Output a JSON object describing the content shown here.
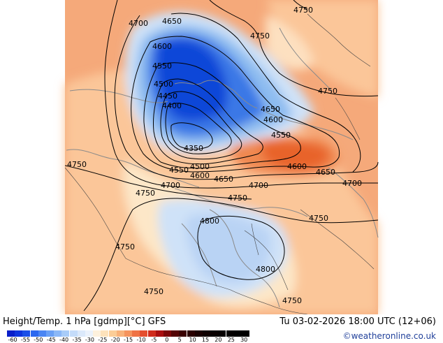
{
  "map": {
    "contour_labels": [
      "4750",
      "4700",
      "4650",
      "4600",
      "4550",
      "4500",
      "4450",
      "4400",
      "4350",
      "4800"
    ],
    "colors": {
      "background": "#ffffff",
      "warm_base": "#f5a97a",
      "warm_light": "#fbd2a4",
      "pale": "#fde7c8",
      "cold_light": "#cfe2f8",
      "cold_mid": "#8dbcf0",
      "cold_deep": "#3a78e6",
      "cold_core": "#1046d8",
      "hot_core": "#e8632c",
      "coast": "#8a8a8a",
      "border": "#444444"
    }
  },
  "footer": {
    "title": "Height/Temp. 1 hPa [gdmp][°C] GFS",
    "datetime": "Tu 03-02-2026 18:00 UTC (12+06)",
    "credit": "©weatheronline.co.uk"
  },
  "legend": {
    "ticks": [
      "-60",
      "-55",
      "-50",
      "-45",
      "-40",
      "-35",
      "-30",
      "-25",
      "-20",
      "-15",
      "-10",
      "-5",
      "0",
      "5",
      "10",
      "15",
      "20",
      "25",
      "30"
    ],
    "colors": [
      "#0a1fc9",
      "#0f35dd",
      "#1a4fe8",
      "#2b68f0",
      "#4a85f3",
      "#6aa0f5",
      "#8bb8f7",
      "#a8ccf9",
      "#c4dcfa",
      "#dbe9fb",
      "#ebf2fc",
      "#fdf1dd",
      "#fde2bb",
      "#fbcd97",
      "#f8b27a",
      "#f5935d",
      "#ef7244",
      "#e44e2e",
      "#cf2b1c",
      "#a90f10",
      "#7a0608",
      "#530304",
      "#3a0101",
      "#2a0000",
      "#1a0000",
      "#100000",
      "#0a0000",
      "#060000",
      "#030000",
      "#000000",
      "#000000"
    ]
  }
}
